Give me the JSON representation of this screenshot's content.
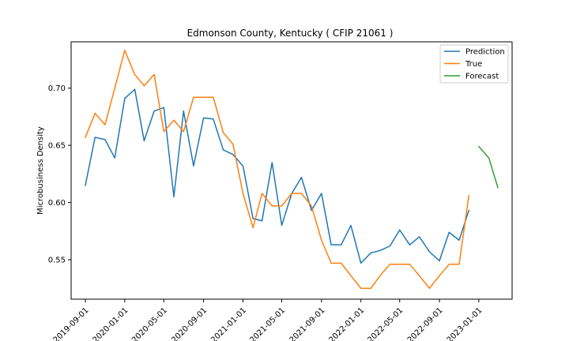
{
  "chart_data": {
    "type": "line",
    "title": "Edmonson County, Kentucky ( CFIP 21061 )",
    "xlabel": "",
    "ylabel": "Microbusiness Density",
    "xlim": [
      "2019-07-19",
      "2023-04-14"
    ],
    "ylim": [
      0.5155,
      0.7405
    ],
    "grid": false,
    "legend_position": "top-right",
    "x_ticks": [
      "2019-09-01",
      "2020-01-01",
      "2020-05-01",
      "2020-09-01",
      "2021-01-01",
      "2021-05-01",
      "2021-09-01",
      "2022-01-01",
      "2022-05-01",
      "2022-09-01",
      "2023-01-01"
    ],
    "y_ticks": [
      0.55,
      0.6,
      0.65,
      0.7
    ],
    "y_tick_labels": [
      "0.55",
      "0.60",
      "0.65",
      "0.70"
    ],
    "series": [
      {
        "name": "Prediction",
        "color": "#1f77b4",
        "x": [
          "2019-09-01",
          "2019-10-01",
          "2019-11-01",
          "2019-12-01",
          "2020-01-01",
          "2020-02-01",
          "2020-03-01",
          "2020-04-01",
          "2020-05-01",
          "2020-06-01",
          "2020-07-01",
          "2020-08-01",
          "2020-09-01",
          "2020-10-01",
          "2020-11-01",
          "2020-12-01",
          "2021-01-01",
          "2021-02-01",
          "2021-03-01",
          "2021-04-01",
          "2021-05-01",
          "2021-06-01",
          "2021-07-01",
          "2021-08-01",
          "2021-09-01",
          "2021-10-01",
          "2021-11-01",
          "2021-12-01",
          "2022-01-01",
          "2022-02-01",
          "2022-03-01",
          "2022-04-01",
          "2022-05-01",
          "2022-06-01",
          "2022-07-01",
          "2022-08-01",
          "2022-09-01",
          "2022-10-01",
          "2022-11-01",
          "2022-12-01"
        ],
        "y": [
          0.615,
          0.657,
          0.655,
          0.639,
          0.691,
          0.699,
          0.654,
          0.68,
          0.683,
          0.605,
          0.68,
          0.632,
          0.674,
          0.673,
          0.646,
          0.642,
          0.632,
          0.586,
          0.584,
          0.635,
          0.58,
          0.608,
          0.622,
          0.593,
          0.608,
          0.563,
          0.563,
          0.58,
          0.547,
          0.556,
          0.558,
          0.562,
          0.576,
          0.563,
          0.57,
          0.557,
          0.549,
          0.574,
          0.567,
          0.593
        ]
      },
      {
        "name": "True",
        "color": "#ff7f0e",
        "x": [
          "2019-09-01",
          "2019-10-01",
          "2019-11-01",
          "2019-12-01",
          "2020-01-01",
          "2020-02-01",
          "2020-03-01",
          "2020-04-01",
          "2020-05-01",
          "2020-06-01",
          "2020-07-01",
          "2020-08-01",
          "2020-09-01",
          "2020-10-01",
          "2020-11-01",
          "2020-12-01",
          "2021-01-01",
          "2021-02-01",
          "2021-03-01",
          "2021-04-01",
          "2021-05-01",
          "2021-06-01",
          "2021-07-01",
          "2021-08-01",
          "2021-09-01",
          "2021-10-01",
          "2021-11-01",
          "2021-12-01",
          "2022-01-01",
          "2022-02-01",
          "2022-03-01",
          "2022-04-01",
          "2022-05-01",
          "2022-06-01",
          "2022-07-01",
          "2022-08-01",
          "2022-09-01",
          "2022-10-01",
          "2022-11-01",
          "2022-12-01"
        ],
        "y": [
          0.657,
          0.678,
          0.668,
          0.7,
          0.733,
          0.712,
          0.702,
          0.712,
          0.662,
          0.672,
          0.662,
          0.692,
          0.692,
          0.692,
          0.661,
          0.651,
          0.608,
          0.578,
          0.608,
          0.597,
          0.597,
          0.608,
          0.608,
          0.597,
          0.567,
          0.547,
          0.547,
          0.536,
          0.525,
          0.525,
          0.536,
          0.546,
          0.546,
          0.546,
          0.536,
          0.525,
          0.536,
          0.546,
          0.546,
          0.606
        ]
      },
      {
        "name": "Forecast",
        "color": "#2ca02c",
        "x": [
          "2023-01-01",
          "2023-02-01",
          "2023-03-01"
        ],
        "y": [
          0.649,
          0.639,
          0.613
        ]
      }
    ]
  }
}
